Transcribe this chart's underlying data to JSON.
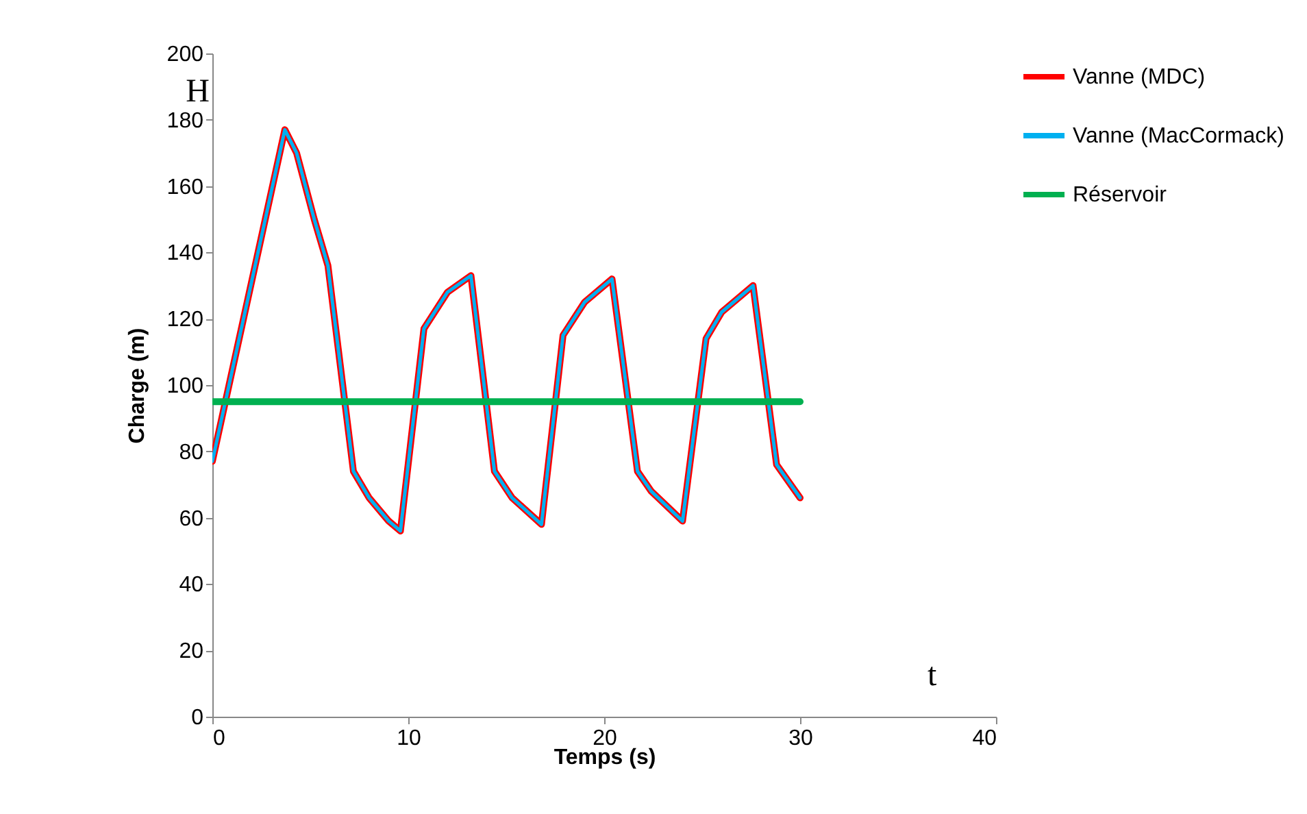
{
  "chart_data": {
    "type": "line",
    "xlabel": "Temps (s)",
    "ylabel": "Charge (m)",
    "x": [
      0,
      3.7,
      4.3,
      5.2,
      5.9,
      7.2,
      8.0,
      9.0,
      9.6,
      10.8,
      12.0,
      13.2,
      14.4,
      15.3,
      16.8,
      17.9,
      19.0,
      20.4,
      21.7,
      22.4,
      24.0,
      25.2,
      26.0,
      27.6,
      28.8,
      30
    ],
    "series": [
      {
        "name": "Vanne (MDC)",
        "color": "#ff0000",
        "values": [
          77,
          177,
          170,
          150,
          136,
          74,
          66,
          59,
          56,
          117,
          128,
          133,
          74,
          66,
          58,
          115,
          125,
          132,
          74,
          68,
          59,
          114,
          122,
          130,
          76,
          66
        ]
      },
      {
        "name": "Vanne (MacCormack)",
        "color": "#00b0f0",
        "values": [
          77,
          177,
          170,
          150,
          136,
          74,
          66,
          59,
          56,
          117,
          128,
          133,
          74,
          66,
          58,
          115,
          125,
          132,
          74,
          68,
          59,
          114,
          122,
          130,
          76,
          66
        ]
      },
      {
        "name": "Réservoir",
        "color": "#00b050",
        "x": [
          0,
          30
        ],
        "values": [
          95,
          95
        ]
      }
    ],
    "xlim": [
      0,
      40
    ],
    "xticks": [
      0,
      10,
      20,
      30,
      40
    ],
    "ylim": [
      0,
      200
    ],
    "yticks": [
      0,
      20,
      40,
      60,
      80,
      100,
      120,
      140,
      160,
      180,
      200
    ],
    "grid": false,
    "legend": "top right",
    "marker": "none",
    "line_style": "solid",
    "annotations": [
      "H",
      "t"
    ]
  }
}
